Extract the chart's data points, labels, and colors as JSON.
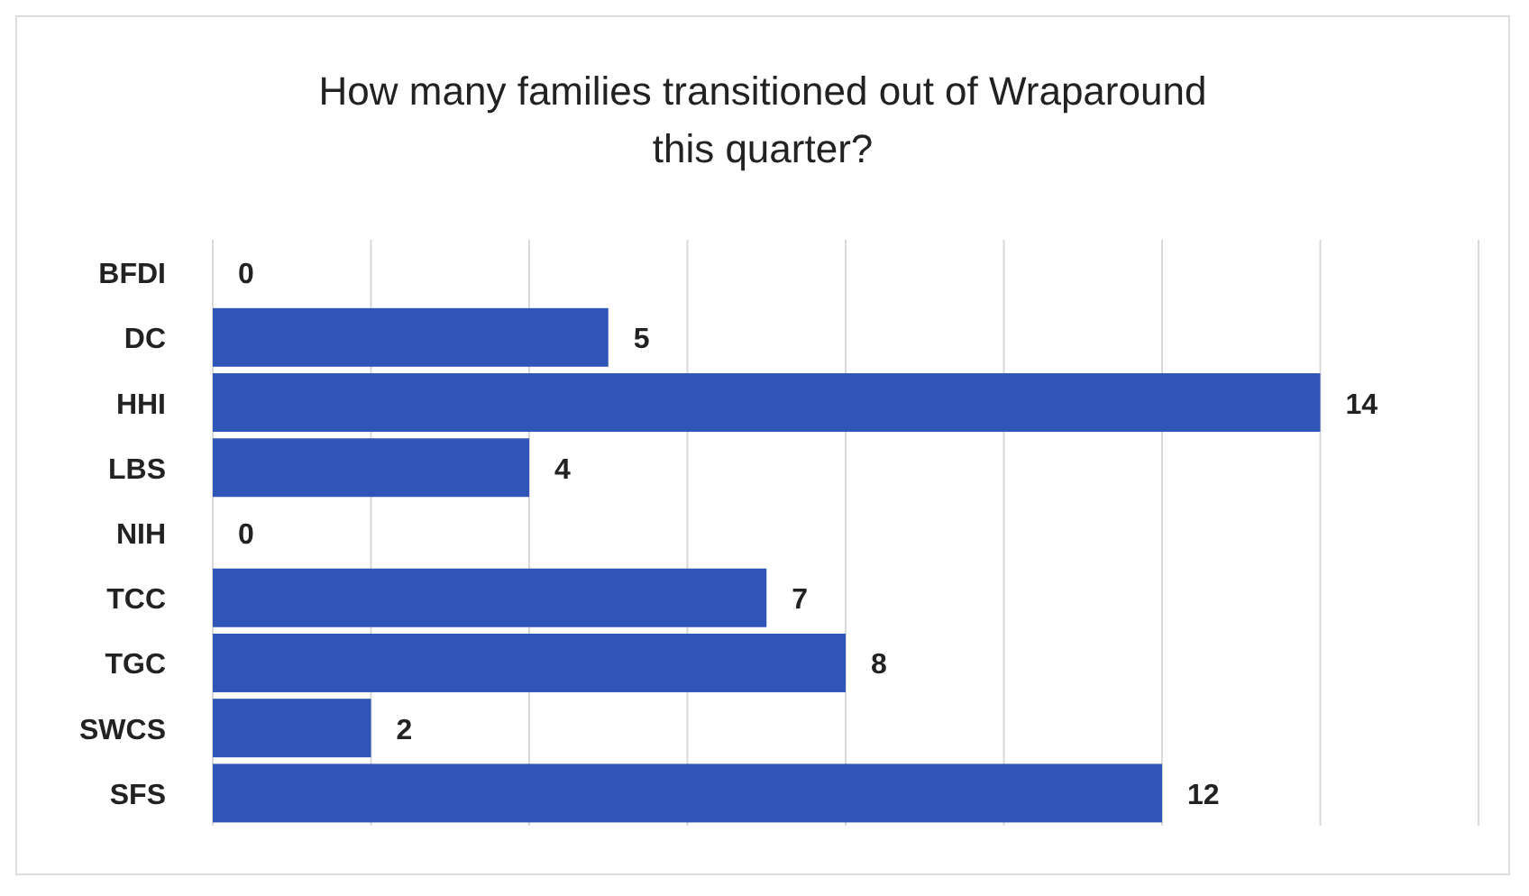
{
  "chart_data": {
    "type": "bar",
    "orientation": "horizontal",
    "title": "How many families transitioned out of Wraparound this quarter?",
    "categories": [
      "BFDI",
      "DC",
      "HHI",
      "LBS",
      "NIH",
      "TCC",
      "TGC",
      "SWCS",
      "SFS"
    ],
    "values": [
      0,
      5,
      14,
      4,
      0,
      7,
      8,
      2,
      12
    ],
    "color": "#2f55b8",
    "data_labels": true,
    "xlim": [
      0,
      16
    ],
    "xticks": [
      {
        "value": 0,
        "label": null
      },
      {
        "value": 2,
        "label": null
      },
      {
        "value": 4,
        "label": null
      },
      {
        "value": 6,
        "label": null
      },
      {
        "value": 8,
        "label": null
      },
      {
        "value": 10,
        "label": null
      },
      {
        "value": 12,
        "label": null
      },
      {
        "value": 14,
        "label": null
      },
      {
        "value": 16,
        "label": null
      }
    ],
    "grid": "x",
    "tick_labels": "y"
  }
}
